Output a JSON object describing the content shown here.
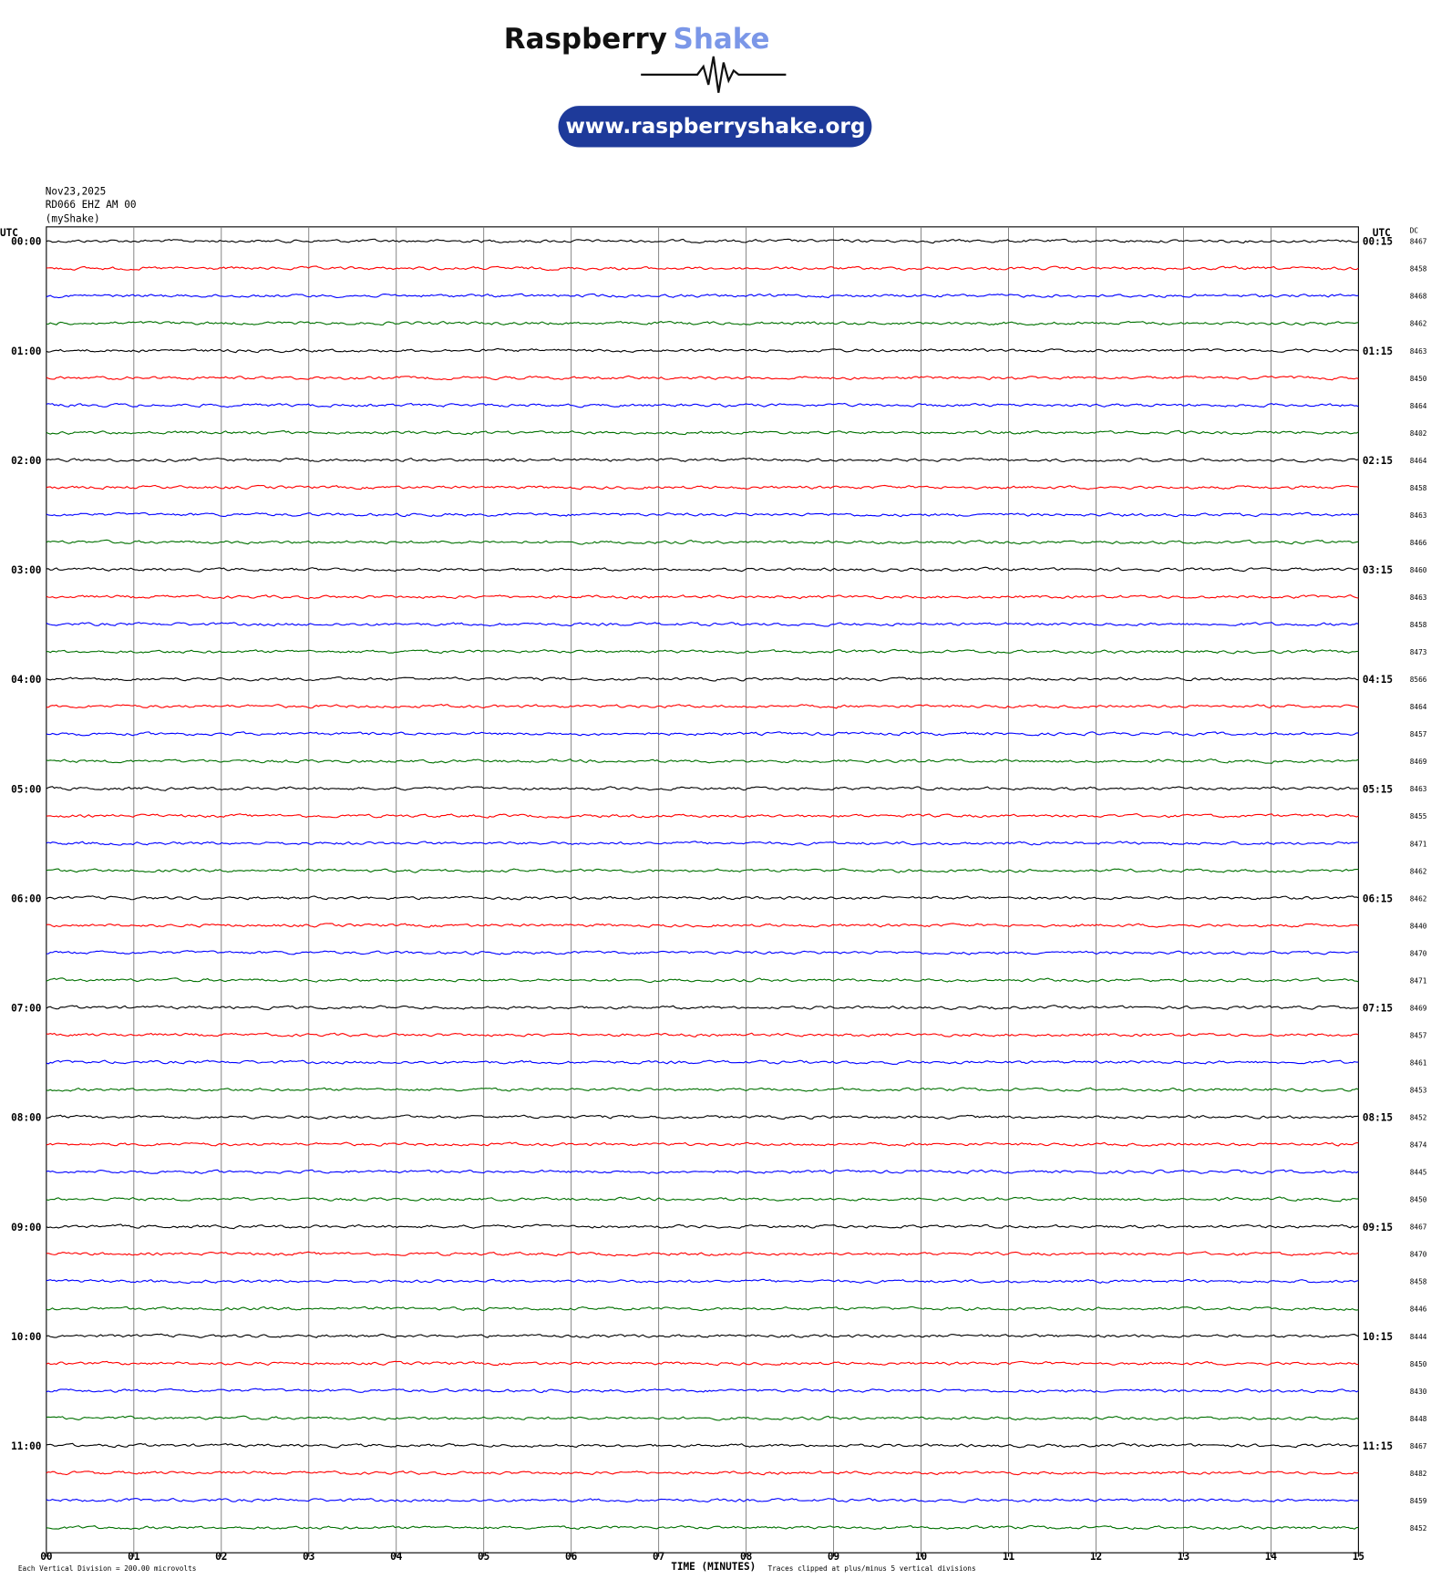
{
  "header": {
    "brand": "Raspberry",
    "brand_accent": "Shake",
    "url": "www.raspberryshake.org"
  },
  "info": {
    "date": "Nov23,2025",
    "station": "RD066 EHZ AM 00",
    "network": "(myShake)"
  },
  "left_axis_title": "UTC",
  "right_axis_title": "UTC",
  "dc_title": "DC",
  "left_labels": [
    "00:00",
    "01:00",
    "02:00",
    "03:00",
    "04:00",
    "05:00",
    "06:00",
    "07:00",
    "08:00",
    "09:00",
    "10:00",
    "11:00"
  ],
  "right_labels": [
    "00:15",
    "01:15",
    "02:15",
    "03:15",
    "04:15",
    "05:15",
    "06:15",
    "07:15",
    "08:15",
    "09:15",
    "10:15",
    "11:15"
  ],
  "dc": [
    "8467",
    "8458",
    "8468",
    "8462",
    "8463",
    "8450",
    "8464",
    "8402",
    "8464",
    "8458",
    "8463",
    "8466",
    "8460",
    "8463",
    "8458",
    "8473",
    "8566",
    "8464",
    "8457",
    "8469",
    "8463",
    "8455",
    "8471",
    "8462",
    "8462",
    "8440",
    "8470",
    "8471",
    "8469",
    "8457",
    "8461",
    "8453",
    "8452",
    "8474",
    "8445",
    "8450",
    "8467",
    "8470",
    "8458",
    "8446",
    "8444",
    "8450",
    "8430",
    "8448",
    "8467",
    "8482",
    "8459",
    "8452"
  ],
  "x_ticks": [
    "00",
    "01",
    "02",
    "03",
    "04",
    "05",
    "06",
    "07",
    "08",
    "09",
    "10",
    "11",
    "12",
    "13",
    "14",
    "15"
  ],
  "x_axis_title": "TIME (MINUTES)",
  "footer_left": "Each Vertical Division =  200.00 microvolts",
  "footer_right": "Traces clipped at plus/minus 5 vertical divisions"
}
